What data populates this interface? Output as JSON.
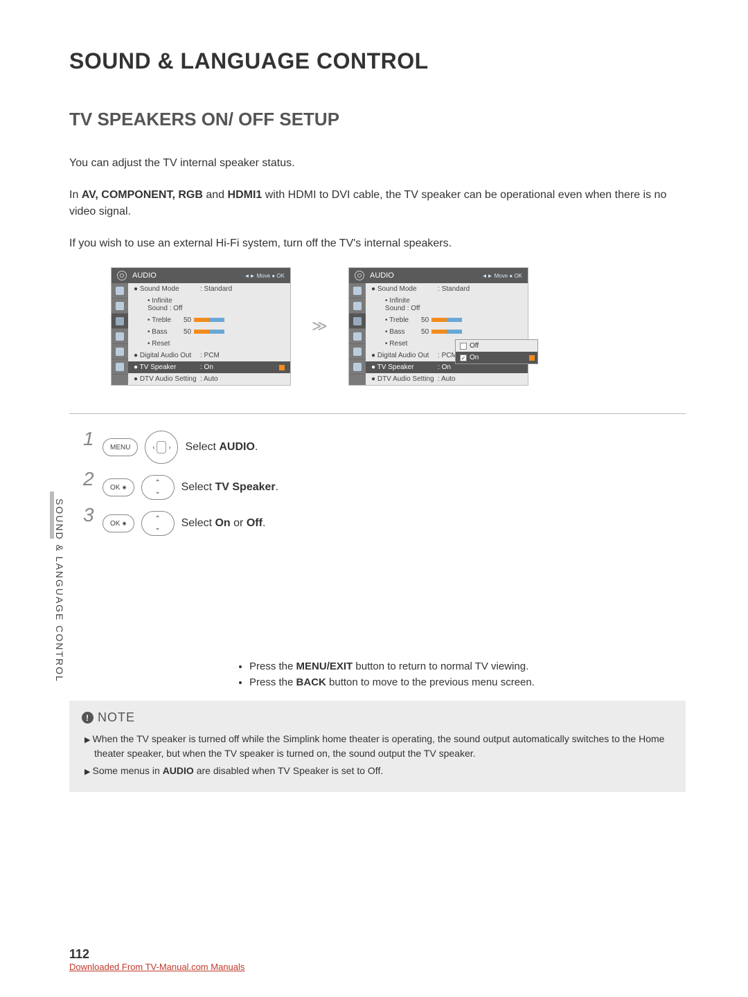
{
  "page": {
    "number": "112",
    "download_line": "Downloaded From TV-Manual.com Manuals",
    "side_tab": "SOUND & LANGUAGE CONTROL"
  },
  "titles": {
    "main": "SOUND & LANGUAGE CONTROL",
    "section": "TV SPEAKERS ON/ OFF SETUP"
  },
  "paras": {
    "p1": "You can adjust the TV internal speaker status.",
    "p2_pre": "In ",
    "p2_bold": "AV, COMPONENT, RGB",
    "p2_mid": " and ",
    "p2_bold2": "HDMI1",
    "p2_post": " with HDMI to DVI cable, the TV speaker can be operational even when there is no video signal.",
    "p3": "If you wish to use an external Hi-Fi system, turn off the TV's internal speakers."
  },
  "osd": {
    "header": "AUDIO",
    "hint": "◄► Move   ● OK",
    "rows": {
      "sound_mode_k": "● Sound Mode",
      "sound_mode_v": ": Standard",
      "infinite_k": "• Infinite Sound : Off",
      "treble_k": "• Treble",
      "treble_v": "50",
      "bass_k": "• Bass",
      "bass_v": "50",
      "reset_k": "• Reset",
      "dao_k": "● Digital Audio Out",
      "dao_v": ": PCM",
      "tvspk_k": "● TV Speaker",
      "tvspk_v": ": On",
      "dtv_k": "● DTV Audio Setting",
      "dtv_v": ": Auto"
    },
    "dropdown": {
      "off": "Off",
      "on": "On"
    }
  },
  "arrow": "≫",
  "steps": {
    "s1_pre": "Select ",
    "s1_b": "AUDIO",
    "s1_post": ".",
    "s2_pre": "Select ",
    "s2_b": "TV Speaker",
    "s2_post": ".",
    "s3_pre": "Select ",
    "s3_b1": "On",
    "s3_mid": " or ",
    "s3_b2": "Off",
    "s3_post": ".",
    "btn_menu": "MENU",
    "btn_ok": "OK"
  },
  "hints": {
    "h1_pre": "Press the ",
    "h1_b": "MENU/EXIT",
    "h1_post": " button to return to normal TV viewing.",
    "h2_pre": "Press the ",
    "h2_b": "BACK",
    "h2_post": " button to move to the previous menu screen."
  },
  "note": {
    "label": "NOTE",
    "n1": "When the TV speaker is turned off while the Simplink home theater is operating, the sound output automatically switches to the Home theater speaker, but when the TV speaker is turned on, the sound output the TV speaker.",
    "n2_pre": "Some menus in ",
    "n2_b": "AUDIO",
    "n2_post": " are disabled when TV Speaker is set to Off."
  }
}
